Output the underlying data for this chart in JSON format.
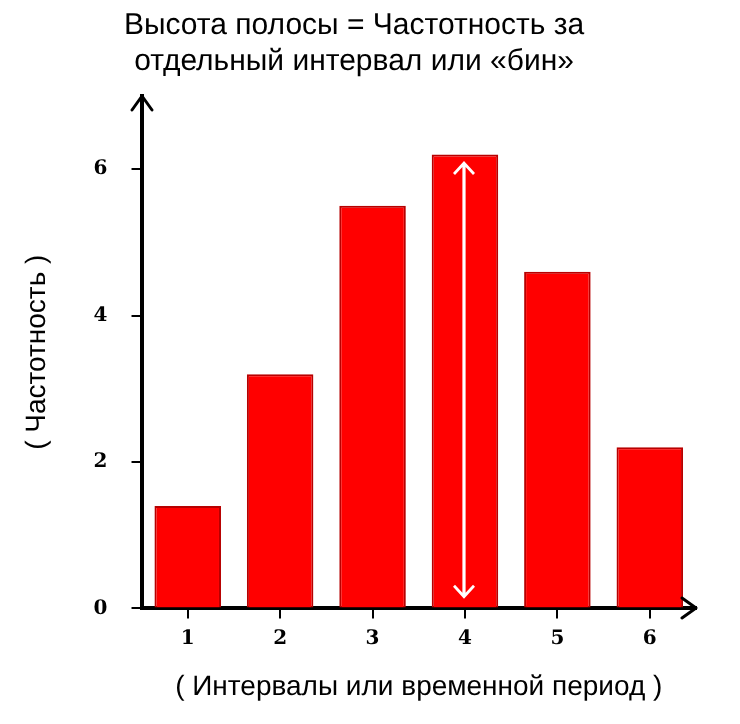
{
  "chart_data": {
    "type": "bar",
    "title": "Высота полосы = Частотность за отдельный интервал или «бин»",
    "xlabel": "( Интервалы или временной период )",
    "ylabel": "( Частотность )",
    "categories": [
      "1",
      "2",
      "3",
      "4",
      "5",
      "6"
    ],
    "series": [
      {
        "color": "#ff0000",
        "values": [
          1.4,
          3.2,
          5.5,
          6.2,
          4.6,
          2.2
        ]
      }
    ],
    "ylim": [
      0,
      7
    ],
    "yticks": [
      0,
      2,
      4,
      6
    ],
    "grid": false,
    "legend": false
  }
}
